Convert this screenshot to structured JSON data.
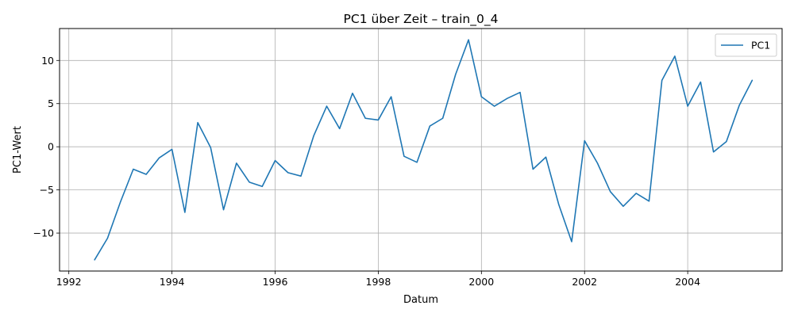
{
  "chart_data": {
    "type": "line",
    "title": "PC1 über Zeit – train_0_4",
    "xlabel": "Datum",
    "ylabel": "PC1-Wert",
    "xlim": [
      1991.82,
      2005.83
    ],
    "ylim": [
      -14.4,
      13.7
    ],
    "grid": true,
    "legend_position": "top-right",
    "x_ticks": [
      1992,
      1994,
      1996,
      1998,
      2000,
      2002,
      2004
    ],
    "x_tick_labels": [
      "1992",
      "1994",
      "1996",
      "1998",
      "2000",
      "2002",
      "2004"
    ],
    "y_ticks": [
      -10,
      -5,
      0,
      5,
      10
    ],
    "y_tick_labels": [
      "−10",
      "−5",
      "0",
      "5",
      "10"
    ],
    "color": "#1f77b4",
    "series": [
      {
        "name": "PC1",
        "x": [
          1992.5,
          1992.75,
          1993.0,
          1993.25,
          1993.5,
          1993.75,
          1994.0,
          1994.25,
          1994.5,
          1994.75,
          1995.0,
          1995.25,
          1995.5,
          1995.75,
          1996.0,
          1996.25,
          1996.5,
          1996.75,
          1997.0,
          1997.25,
          1997.5,
          1997.75,
          1998.0,
          1998.25,
          1998.5,
          1998.75,
          1999.0,
          1999.25,
          1999.5,
          1999.75,
          2000.0,
          2000.25,
          2000.5,
          2000.75,
          2001.0,
          2001.25,
          2001.5,
          2001.75,
          2002.0,
          2002.25,
          2002.5,
          2002.75,
          2003.0,
          2003.25,
          2003.5,
          2003.75,
          2004.0,
          2004.25,
          2004.5,
          2004.75,
          2005.0,
          2005.25
        ],
        "values": [
          -13.1,
          -10.6,
          -6.4,
          -2.6,
          -3.2,
          -1.3,
          -0.3,
          -7.6,
          2.8,
          -0.1,
          -7.3,
          -1.9,
          -4.1,
          -4.6,
          -1.6,
          -3.0,
          -3.4,
          1.3,
          4.7,
          2.1,
          6.2,
          3.3,
          3.1,
          5.8,
          -1.1,
          -1.8,
          2.4,
          3.3,
          8.4,
          12.4,
          5.8,
          4.7,
          5.6,
          6.3,
          -2.6,
          -1.2,
          -6.7,
          -11.0,
          0.7,
          -1.9,
          -5.2,
          -6.9,
          -5.4,
          -6.3,
          7.7,
          10.5,
          4.7,
          7.5,
          -0.6,
          0.6,
          4.8,
          7.7
        ]
      }
    ]
  }
}
